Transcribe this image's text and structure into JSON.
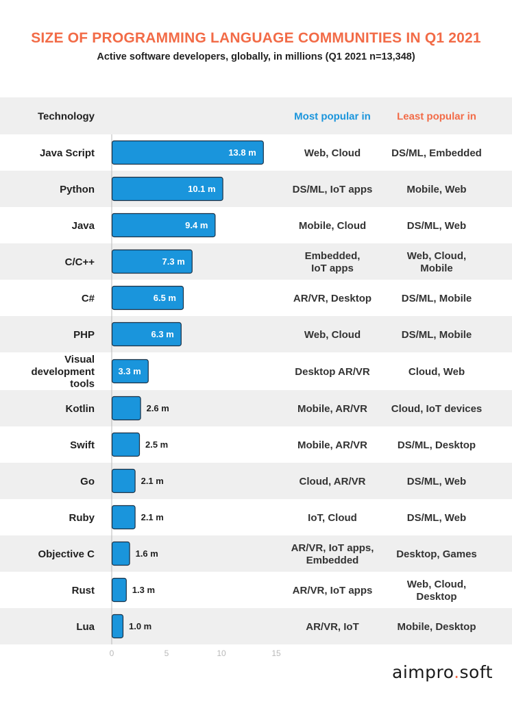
{
  "title": "SIZE OF PROGRAMMING LANGUAGE COMMUNITIES IN Q1 2021",
  "subtitle": "Active software developers, globally, in millions (Q1 2021 n=13,348)",
  "brand": {
    "left": "aimpro",
    "dot": ".",
    "right": "soft"
  },
  "colors": {
    "bar": "#1a95dc",
    "bar_stroke": "#1b3044",
    "title": "#f26b47",
    "most_popular": "#1a95dc",
    "least_popular": "#f26b47",
    "row_band": "#efefef",
    "text": "#1f1f1f",
    "axis_tick": "#b9b9b9"
  },
  "chart_data": {
    "type": "bar",
    "orientation": "horizontal",
    "title": "SIZE OF PROGRAMMING LANGUAGE COMMUNITIES IN Q1 2021",
    "subtitle": "Active software developers, globally, in millions (Q1 2021 n=13,348)",
    "headers": {
      "technology": "Technology",
      "most": "Most popular in",
      "least": "Least popular in"
    },
    "xlim": [
      0,
      15
    ],
    "xticks": [
      0,
      5,
      10,
      15
    ],
    "grid": false,
    "rows": [
      {
        "name": [
          "Java Script"
        ],
        "value": 13.8,
        "label": "13.8 m",
        "most": [
          "Web, Cloud"
        ],
        "least": [
          "DS/ML, Embedded"
        ]
      },
      {
        "name": [
          "Python"
        ],
        "value": 10.1,
        "label": "10.1 m",
        "most": [
          "DS/ML, IoT apps"
        ],
        "least": [
          "Mobile, Web"
        ]
      },
      {
        "name": [
          "Java"
        ],
        "value": 9.4,
        "label": "9.4 m",
        "most": [
          "Mobile, Cloud"
        ],
        "least": [
          "DS/ML, Web"
        ]
      },
      {
        "name": [
          "C/C++"
        ],
        "value": 7.3,
        "label": "7.3 m",
        "most": [
          "Embedded,",
          "IoT apps"
        ],
        "least": [
          "Web, Cloud,",
          "Mobile"
        ]
      },
      {
        "name": [
          "C#"
        ],
        "value": 6.5,
        "label": "6.5 m",
        "most": [
          "AR/VR, Desktop"
        ],
        "least": [
          "DS/ML, Mobile"
        ]
      },
      {
        "name": [
          "PHP"
        ],
        "value": 6.3,
        "label": "6.3 m",
        "most": [
          "Web, Cloud"
        ],
        "least": [
          "DS/ML, Mobile"
        ]
      },
      {
        "name": [
          "Visual",
          "development",
          "tools"
        ],
        "value": 3.3,
        "label": "3.3 m",
        "most": [
          "Desktop AR/VR"
        ],
        "least": [
          "Cloud, Web"
        ]
      },
      {
        "name": [
          "Kotlin"
        ],
        "value": 2.6,
        "label": "2.6 m",
        "most": [
          "Mobile, AR/VR"
        ],
        "least": [
          "Cloud, IoT devices"
        ]
      },
      {
        "name": [
          "Swift"
        ],
        "value": 2.5,
        "label": "2.5 m",
        "most": [
          "Mobile, AR/VR"
        ],
        "least": [
          "DS/ML, Desktop"
        ]
      },
      {
        "name": [
          "Go"
        ],
        "value": 2.1,
        "label": "2.1 m",
        "most": [
          "Cloud, AR/VR"
        ],
        "least": [
          "DS/ML, Web"
        ]
      },
      {
        "name": [
          "Ruby"
        ],
        "value": 2.1,
        "label": "2.1 m",
        "most": [
          "IoT, Cloud"
        ],
        "least": [
          "DS/ML, Web"
        ]
      },
      {
        "name": [
          "Objective C"
        ],
        "value": 1.6,
        "label": "1.6 m",
        "most": [
          "AR/VR, IoT apps,",
          "Embedded"
        ],
        "least": [
          "Desktop, Games"
        ]
      },
      {
        "name": [
          "Rust"
        ],
        "value": 1.3,
        "label": "1.3 m",
        "most": [
          "AR/VR, IoT apps"
        ],
        "least": [
          "Web, Cloud,",
          "Desktop"
        ]
      },
      {
        "name": [
          "Lua"
        ],
        "value": 1.0,
        "label": "1.0 m",
        "most": [
          "AR/VR, IoT"
        ],
        "least": [
          "Mobile, Desktop"
        ]
      }
    ]
  }
}
